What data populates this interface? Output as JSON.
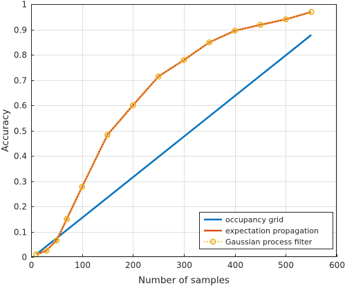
{
  "chart_data": {
    "type": "line",
    "title": "",
    "xlabel": "Number of samples",
    "ylabel": "Accuracy",
    "xlim": [
      0,
      600
    ],
    "ylim": [
      0,
      1
    ],
    "xticks": [
      0,
      100,
      200,
      300,
      400,
      500,
      600
    ],
    "yticks": [
      0,
      0.1,
      0.2,
      0.3,
      0.4,
      0.5,
      0.6,
      0.7,
      0.8,
      0.9,
      1
    ],
    "grid": true,
    "legend_position": "bottom-right",
    "series": [
      {
        "name": "occupancy grid",
        "color": "#0072BD",
        "style": "solid",
        "x": [
          10,
          550
        ],
        "y": [
          0.01,
          0.878
        ]
      },
      {
        "name": "expectation propagation",
        "color": "#D95319",
        "style": "solid",
        "x": [
          10,
          30,
          50,
          70,
          100,
          150,
          200,
          250,
          300,
          350,
          400,
          450,
          500,
          550
        ],
        "y": [
          0.01,
          0.025,
          0.065,
          0.15,
          0.277,
          0.483,
          0.6,
          0.714,
          0.779,
          0.849,
          0.895,
          0.918,
          0.94,
          0.969
        ]
      },
      {
        "name": "Gaussian process filter",
        "color": "#EDB120",
        "style": "dotted-circle-markers",
        "x": [
          10,
          30,
          50,
          70,
          100,
          150,
          200,
          250,
          300,
          350,
          400,
          450,
          500,
          550
        ],
        "y": [
          0.01,
          0.025,
          0.065,
          0.15,
          0.277,
          0.483,
          0.6,
          0.714,
          0.779,
          0.849,
          0.895,
          0.918,
          0.94,
          0.969
        ]
      }
    ]
  }
}
